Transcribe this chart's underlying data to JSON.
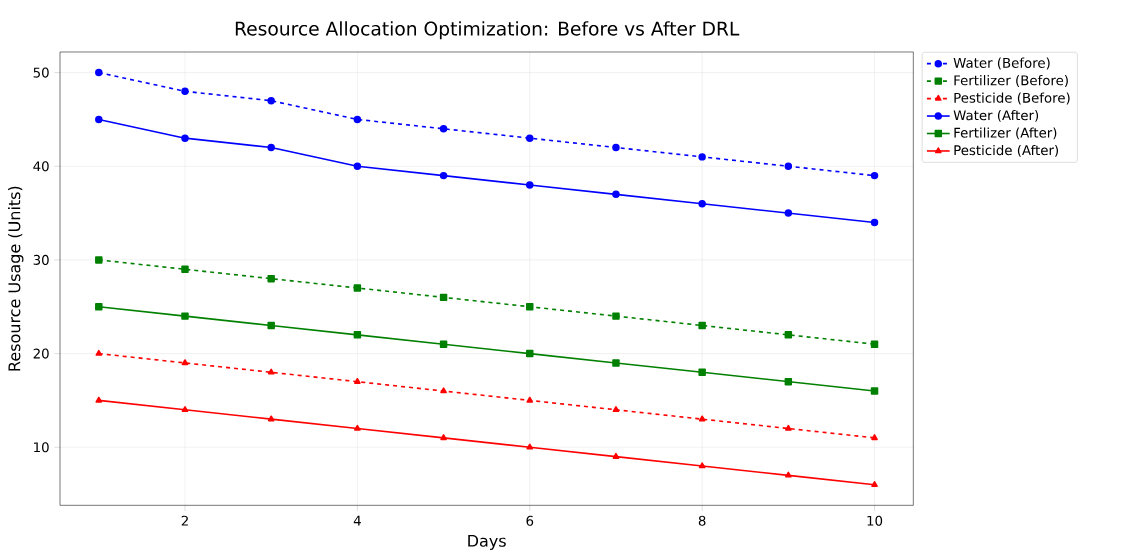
{
  "chart_data": {
    "type": "line",
    "title": "Resource Allocation Optimization: Before vs After DRL",
    "xlabel": "Days",
    "ylabel": "Resource Usage (Units)",
    "x": [
      1,
      2,
      3,
      4,
      5,
      6,
      7,
      8,
      9,
      10
    ],
    "series": [
      {
        "name": "Water (Before)",
        "color": "#0000ff",
        "marker": "circle",
        "line_style": "dashed",
        "values": [
          50,
          48,
          47,
          45,
          44,
          43,
          42,
          41,
          40,
          39
        ]
      },
      {
        "name": "Fertilizer (Before)",
        "color": "#008000",
        "marker": "square",
        "line_style": "dashed",
        "values": [
          30,
          29,
          28,
          27,
          26,
          25,
          24,
          23,
          22,
          21
        ]
      },
      {
        "name": "Pesticide (Before)",
        "color": "#ff0000",
        "marker": "triangle",
        "line_style": "dashed",
        "values": [
          20,
          19,
          18,
          17,
          16,
          15,
          14,
          13,
          12,
          11
        ]
      },
      {
        "name": "Water (After)",
        "color": "#0000ff",
        "marker": "circle",
        "line_style": "solid",
        "values": [
          45,
          43,
          42,
          40,
          39,
          38,
          37,
          36,
          35,
          34
        ]
      },
      {
        "name": "Fertilizer (After)",
        "color": "#008000",
        "marker": "square",
        "line_style": "solid",
        "values": [
          25,
          24,
          23,
          22,
          21,
          20,
          19,
          18,
          17,
          16
        ]
      },
      {
        "name": "Pesticide (After)",
        "color": "#ff0000",
        "marker": "triangle",
        "line_style": "solid",
        "values": [
          15,
          14,
          13,
          12,
          11,
          10,
          9,
          8,
          7,
          6
        ]
      }
    ],
    "xlim": [
      0.55,
      10.45
    ],
    "ylim": [
      3.8,
      52.2
    ],
    "xticks": [
      2,
      4,
      6,
      8,
      10
    ],
    "yticks": [
      10,
      20,
      30,
      40,
      50
    ],
    "grid": true,
    "legend": "right"
  }
}
